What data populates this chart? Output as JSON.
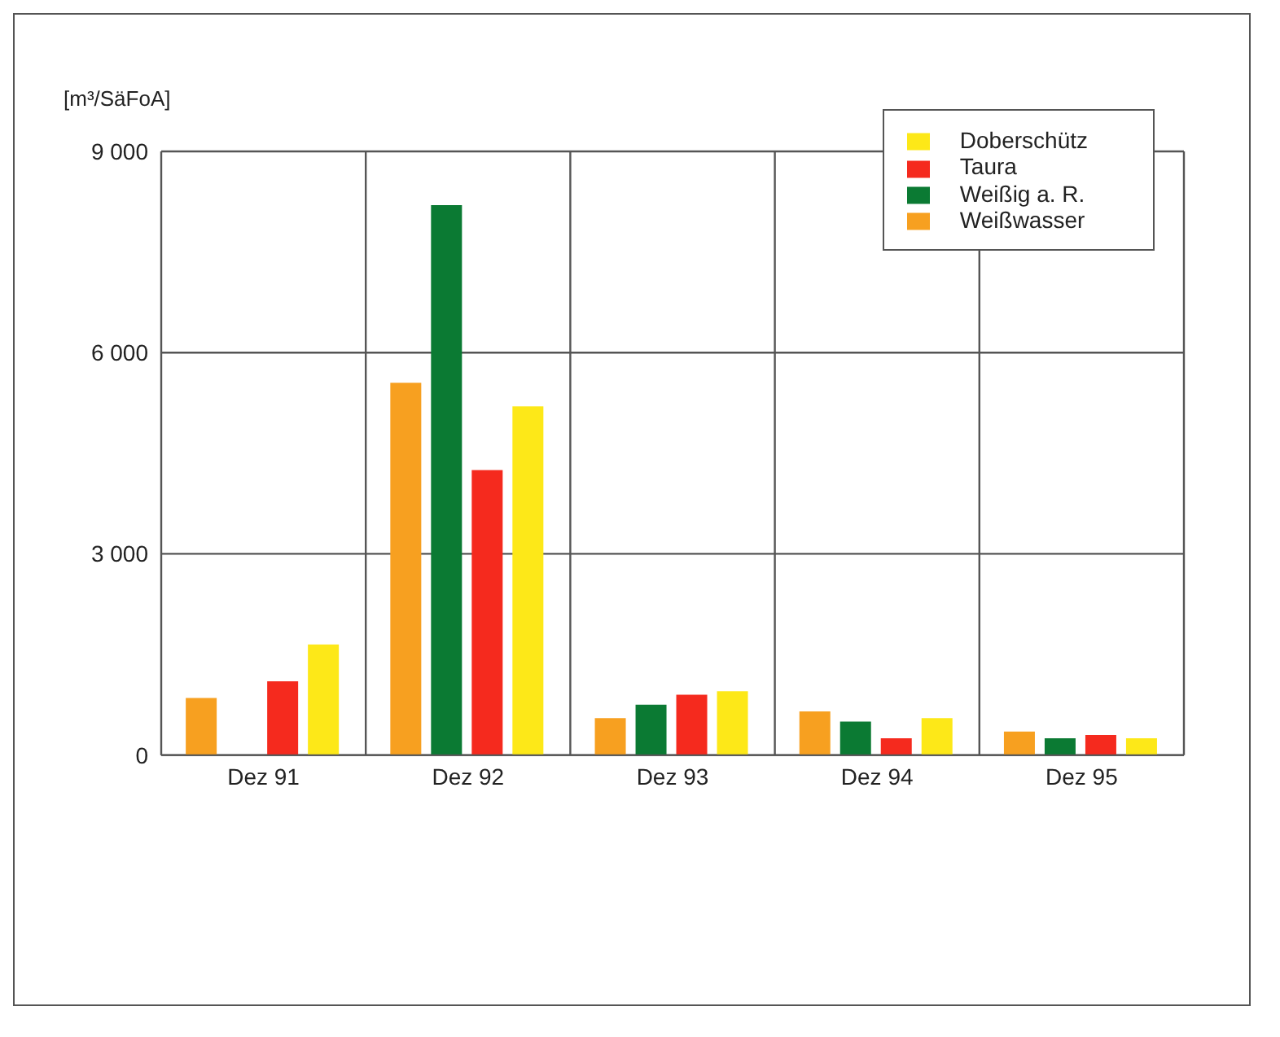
{
  "chart_data": {
    "type": "bar",
    "ylabel": "[m³/SäFoA]",
    "categories": [
      "Dez 91",
      "Dez 92",
      "Dez 93",
      "Dez 94",
      "Dez 95"
    ],
    "series": [
      {
        "name": "Weißwasser",
        "color": "#f7a020",
        "values": [
          850,
          5550,
          550,
          650,
          350
        ]
      },
      {
        "name": "Weißig a. R.",
        "color": "#0b7a33",
        "values": [
          null,
          8200,
          750,
          500,
          250
        ]
      },
      {
        "name": "Taura",
        "color": "#f52a1e",
        "values": [
          1100,
          4250,
          900,
          250,
          300
        ]
      },
      {
        "name": "Doberschütz",
        "color": "#fde818",
        "values": [
          1650,
          5200,
          950,
          550,
          250
        ]
      }
    ],
    "ylim": [
      0,
      9000
    ],
    "yticks": [
      0,
      {
        "value": 3000,
        "label": "3 000"
      },
      {
        "value": 6000,
        "label": "6 000"
      },
      {
        "value": 9000,
        "label": "9 000"
      }
    ],
    "grid": true,
    "legend": "top right"
  }
}
